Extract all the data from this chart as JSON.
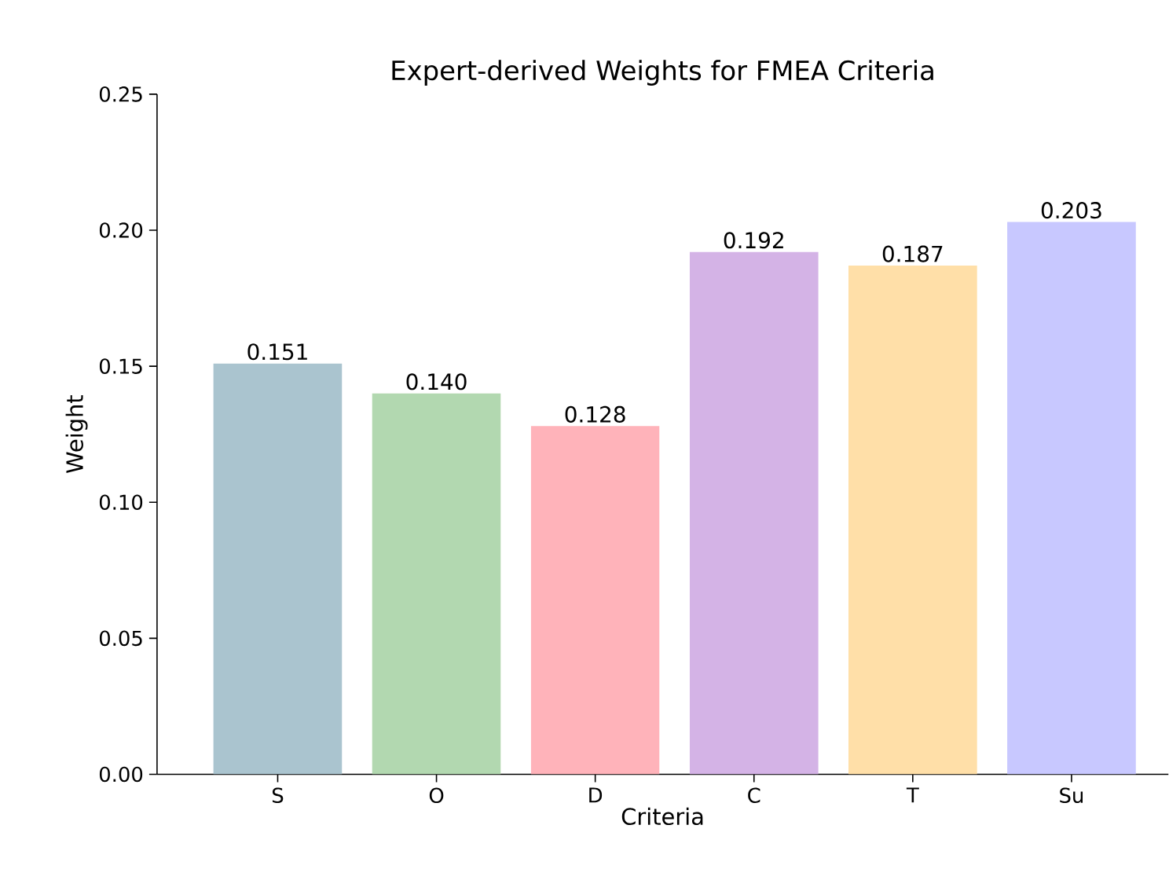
{
  "chart_data": {
    "type": "bar",
    "title": "Expert-derived Weights for FMEA Criteria",
    "xlabel": "Criteria",
    "ylabel": "Weight",
    "categories": [
      "S",
      "O",
      "D",
      "C",
      "T",
      "Su"
    ],
    "values": [
      0.151,
      0.14,
      0.128,
      0.192,
      0.187,
      0.203
    ],
    "value_labels": [
      "0.151",
      "0.140",
      "0.128",
      "0.192",
      "0.187",
      "0.203"
    ],
    "colors": [
      "#aac4cf",
      "#b2d8b0",
      "#ffb3ba",
      "#d4b3e6",
      "#ffdfa8",
      "#c8c8ff"
    ],
    "ylim": [
      0,
      0.25
    ],
    "yticks": [
      {
        "value": 0,
        "label": "0.00"
      },
      {
        "value": 0.05,
        "label": "0.05"
      },
      {
        "value": 0.1,
        "label": "0.10"
      },
      {
        "value": 0.15,
        "label": "0.15"
      },
      {
        "value": 0.2,
        "label": "0.20"
      },
      {
        "value": 0.25,
        "label": "0.25"
      }
    ],
    "grid": false
  }
}
